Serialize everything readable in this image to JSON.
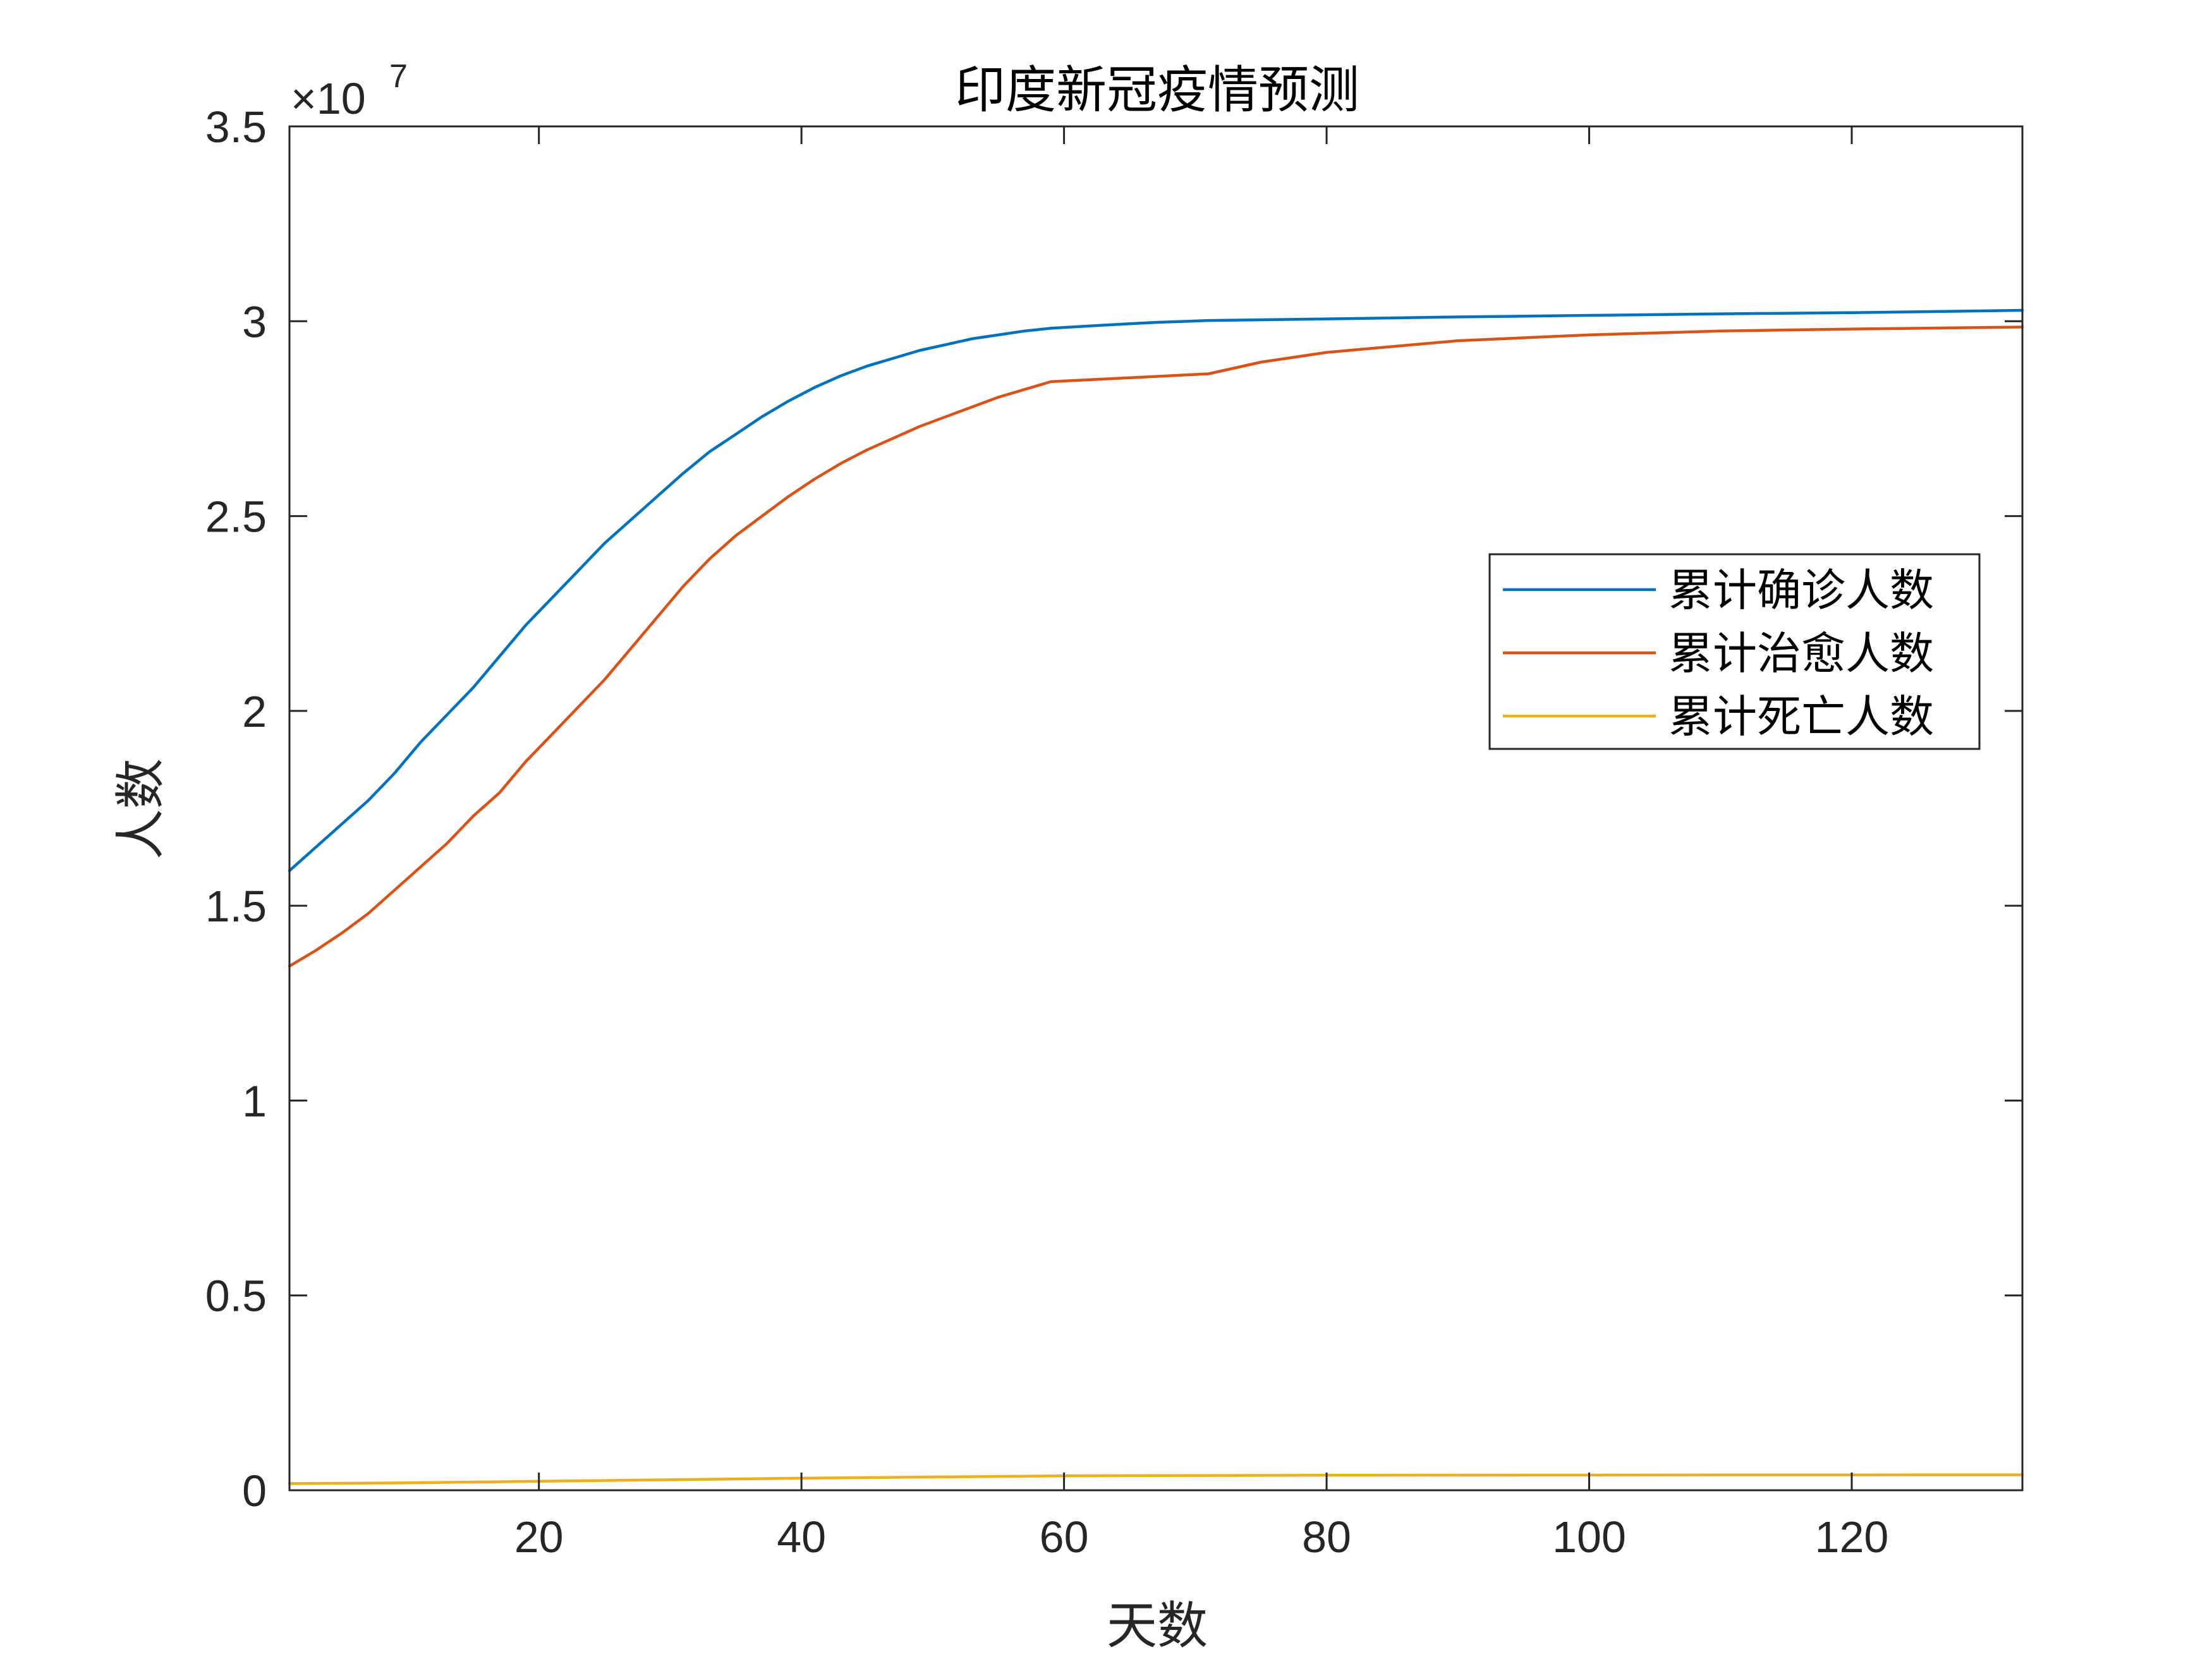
{
  "chart_data": {
    "type": "line",
    "title": "印度新冠疫情预测",
    "xlabel": "天数",
    "ylabel": "人数",
    "y_exponent_label": "×10",
    "y_exponent_power": "7",
    "xlim": [
      1,
      133
    ],
    "ylim": [
      0,
      35000000
    ],
    "x_ticks": [
      20,
      40,
      60,
      80,
      100,
      120
    ],
    "x_tick_labels": [
      "20",
      "40",
      "60",
      "80",
      "100",
      "120"
    ],
    "y_ticks": [
      0,
      5000000,
      10000000,
      15000000,
      20000000,
      25000000,
      30000000,
      35000000
    ],
    "y_tick_labels": [
      "0",
      "0.5",
      "1",
      "1.5",
      "2",
      "2.5",
      "3",
      "3.5"
    ],
    "grid": false,
    "legend_position": "right",
    "series": [
      {
        "name": "累计确诊人数",
        "color": "#0072BD",
        "x": [
          1,
          3,
          5,
          7,
          9,
          11,
          13,
          15,
          17,
          19,
          21,
          23,
          25,
          27,
          29,
          31,
          33,
          35,
          37,
          39,
          41,
          43,
          45,
          47,
          49,
          51,
          53,
          55,
          57,
          59,
          63,
          67,
          71,
          80,
          90,
          100,
          110,
          120,
          133
        ],
        "values": [
          15900000,
          16500000,
          17100000,
          17700000,
          18400000,
          19200000,
          19900000,
          20600000,
          21400000,
          22200000,
          22900000,
          23600000,
          24300000,
          24900000,
          25500000,
          26100000,
          26650000,
          27100000,
          27550000,
          27950000,
          28300000,
          28600000,
          28850000,
          29050000,
          29250000,
          29400000,
          29550000,
          29650000,
          29750000,
          29820000,
          29900000,
          29970000,
          30020000,
          30060000,
          30110000,
          30150000,
          30190000,
          30220000,
          30280000
        ]
      },
      {
        "name": "累计治愈人数",
        "color": "#D95319",
        "x": [
          1,
          3,
          5,
          7,
          9,
          11,
          13,
          15,
          17,
          19,
          21,
          23,
          25,
          27,
          29,
          31,
          33,
          35,
          37,
          39,
          41,
          43,
          45,
          47,
          49,
          51,
          53,
          55,
          57,
          59,
          65,
          71,
          75,
          80,
          90,
          100,
          110,
          120,
          133
        ],
        "values": [
          13450000,
          13850000,
          14300000,
          14800000,
          15400000,
          16000000,
          16600000,
          17300000,
          17900000,
          18700000,
          19400000,
          20100000,
          20800000,
          21600000,
          22400000,
          23200000,
          23900000,
          24500000,
          25000000,
          25500000,
          25950000,
          26350000,
          26700000,
          27000000,
          27300000,
          27550000,
          27800000,
          28050000,
          28250000,
          28450000,
          28550000,
          28650000,
          28950000,
          29200000,
          29500000,
          29650000,
          29750000,
          29800000,
          29850000
        ]
      },
      {
        "name": "累计死亡人数",
        "color": "#EDB120",
        "x": [
          1,
          10,
          20,
          30,
          40,
          50,
          60,
          70,
          80,
          90,
          100,
          110,
          120,
          133
        ],
        "values": [
          170000,
          190000,
          230000,
          270000,
          310000,
          340000,
          370000,
          380000,
          385000,
          388000,
          390000,
          392000,
          394000,
          395000
        ]
      }
    ]
  }
}
